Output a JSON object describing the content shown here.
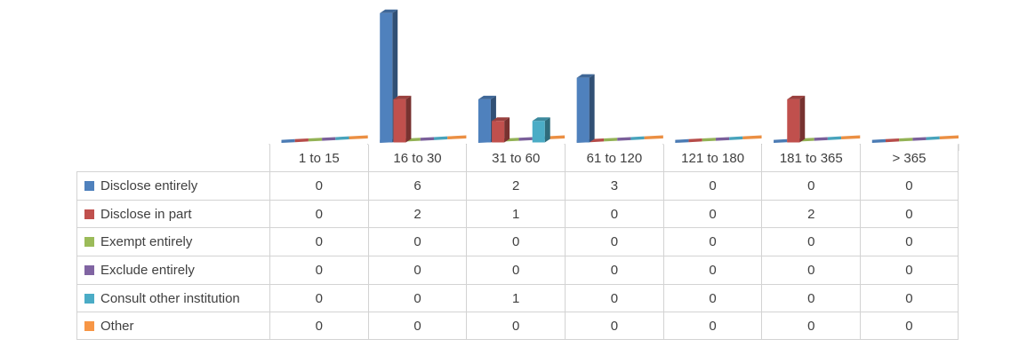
{
  "ui": {
    "background": "#FFFFFF",
    "text_color": "#404040",
    "border_color": "#D3D3D3",
    "tick_color": "#C6C6C6"
  },
  "chart_data": {
    "type": "bar",
    "variant": "3d-clustered-column-with-data-table",
    "title": "",
    "xlabel": "",
    "ylabel": "",
    "ylim": [
      0,
      6
    ],
    "grid": false,
    "legend_position": "data-table-left",
    "categories": [
      "1 to 15",
      "16 to 30",
      "31 to 60",
      "61 to 120",
      "121 to 180",
      "181 to 365",
      "> 365"
    ],
    "series": [
      {
        "name": "Disclose entirely",
        "color": "#4F81BD",
        "values": [
          0,
          6,
          2,
          3,
          0,
          0,
          0
        ]
      },
      {
        "name": "Disclose in part",
        "color": "#C0504D",
        "values": [
          0,
          2,
          1,
          0,
          0,
          2,
          0
        ]
      },
      {
        "name": "Exempt entirely",
        "color": "#9BBB59",
        "values": [
          0,
          0,
          0,
          0,
          0,
          0,
          0
        ]
      },
      {
        "name": "Exclude entirely",
        "color": "#8064A2",
        "values": [
          0,
          0,
          0,
          0,
          0,
          0,
          0
        ]
      },
      {
        "name": "Consult other institution",
        "color": "#4BACC6",
        "values": [
          0,
          0,
          1,
          0,
          0,
          0,
          0
        ]
      },
      {
        "name": "Other",
        "color": "#F79646",
        "values": [
          0,
          0,
          0,
          0,
          0,
          0,
          0
        ]
      }
    ]
  }
}
